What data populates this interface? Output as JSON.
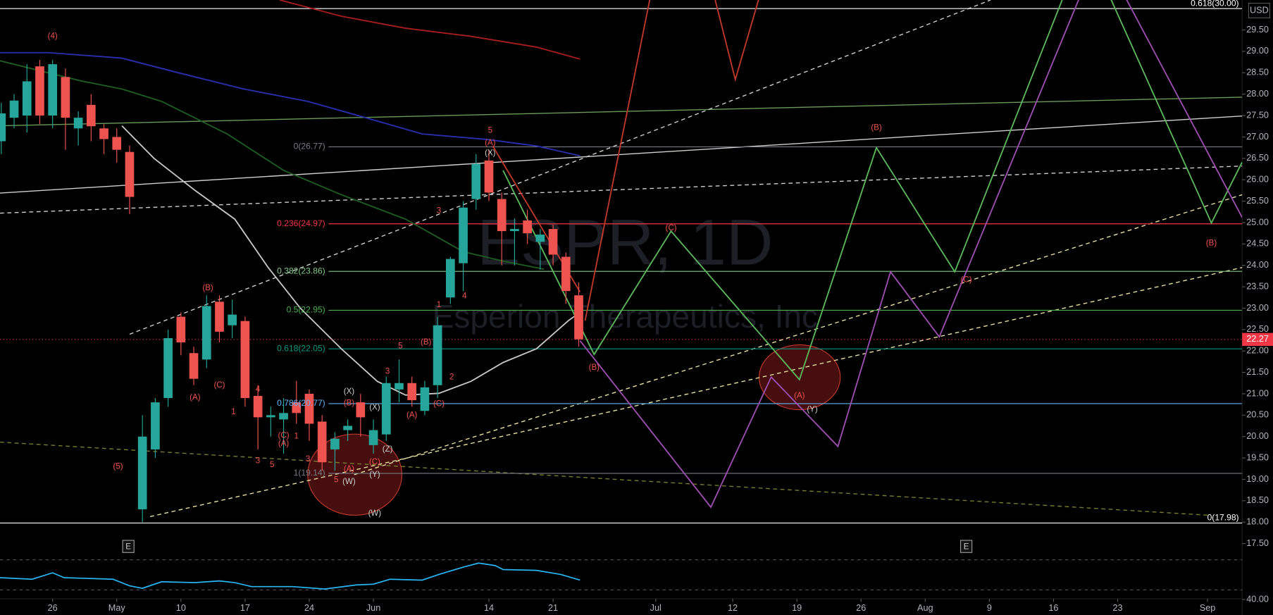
{
  "chart_data": {
    "type": "candlestick",
    "title": "ESPR, 1D",
    "subtitle": "Esperion Therapeutics, Inc",
    "currency": "USD",
    "up_color": "#26a69a",
    "down_color": "#ef5350",
    "xlim": [
      -4.1,
      92.7
    ],
    "ylim": [
      17.12,
      30.2
    ],
    "grid": false,
    "x": [
      -4,
      -3,
      -2,
      -1,
      0,
      1,
      2,
      3,
      4,
      5,
      6,
      7,
      8,
      9,
      10,
      11,
      12,
      13,
      14,
      15,
      16,
      17,
      18,
      19,
      20,
      21,
      22,
      23,
      24,
      25,
      26,
      27,
      28,
      29,
      30,
      31,
      32,
      33,
      34,
      35,
      36,
      37,
      38,
      39,
      40,
      41
    ],
    "open": [
      26.9,
      27.45,
      27.5,
      28.65,
      27.5,
      28.4,
      27.2,
      27.75,
      27.2,
      27.0,
      26.65,
      18.3,
      19.7,
      20.9,
      22.8,
      21.95,
      21.8,
      23.15,
      22.6,
      22.7,
      20.95,
      20.45,
      20.4,
      20.8,
      21.0,
      20.35,
      19.7,
      20.15,
      20.8,
      19.8,
      20.05,
      21.1,
      21.25,
      20.6,
      21.2,
      23.25,
      24.05,
      25.55,
      26.45,
      25.55,
      24.8,
      25.05,
      24.55,
      24.85,
      24.2,
      23.3
    ],
    "high": [
      27.8,
      28.0,
      28.7,
      28.8,
      28.8,
      28.6,
      27.6,
      28.0,
      27.3,
      27.2,
      26.8,
      20.5,
      20.9,
      22.5,
      22.9,
      22.1,
      23.3,
      23.3,
      23.2,
      22.8,
      21.2,
      20.7,
      20.9,
      21.3,
      21.1,
      20.5,
      20.1,
      20.4,
      21.0,
      20.4,
      21.4,
      21.8,
      21.4,
      21.3,
      22.8,
      24.2,
      25.5,
      26.6,
      26.7,
      25.7,
      25.1,
      25.3,
      24.85,
      24.95,
      24.3,
      23.6
    ],
    "low": [
      26.6,
      27.2,
      27.1,
      27.3,
      27.2,
      26.7,
      26.8,
      26.9,
      26.6,
      26.4,
      25.2,
      18.0,
      19.5,
      20.7,
      21.9,
      21.2,
      21.6,
      22.2,
      22.3,
      20.7,
      19.7,
      20.0,
      19.6,
      20.3,
      19.9,
      19.2,
      19.2,
      19.9,
      20.0,
      19.6,
      19.9,
      20.8,
      20.7,
      20.5,
      20.9,
      23.1,
      23.4,
      25.3,
      25.5,
      24.0,
      24.0,
      24.5,
      23.9,
      24.0,
      23.1,
      22.1
    ],
    "close": [
      27.55,
      27.85,
      28.3,
      27.5,
      28.7,
      27.45,
      27.45,
      27.25,
      26.95,
      26.7,
      25.6,
      20.0,
      20.8,
      22.3,
      22.2,
      21.35,
      23.05,
      22.45,
      22.85,
      20.9,
      20.45,
      20.5,
      20.55,
      20.55,
      20.3,
      19.4,
      19.95,
      20.25,
      20.45,
      20.15,
      21.25,
      21.25,
      20.85,
      21.15,
      22.6,
      24.15,
      25.35,
      26.37,
      25.7,
      24.8,
      24.85,
      24.75,
      24.72,
      24.25,
      23.4,
      22.27
    ],
    "last_price": 22.27,
    "last_price_color": "#f23645",
    "xticks": [
      {
        "value": 0,
        "label": "26"
      },
      {
        "value": 5,
        "label": "May"
      },
      {
        "value": 10,
        "label": "10"
      },
      {
        "value": 15,
        "label": "17"
      },
      {
        "value": 20,
        "label": "24"
      },
      {
        "value": 25,
        "label": "Jun"
      },
      {
        "value": 34,
        "label": "14"
      },
      {
        "value": 39,
        "label": "21"
      },
      {
        "value": 47,
        "label": "Jul"
      },
      {
        "value": 53,
        "label": "12"
      },
      {
        "value": 58,
        "label": "19"
      },
      {
        "value": 63,
        "label": "26"
      },
      {
        "value": 68,
        "label": "Aug"
      },
      {
        "value": 73,
        "label": "9"
      },
      {
        "value": 78,
        "label": "16"
      },
      {
        "value": 83,
        "label": "23"
      },
      {
        "value": 90,
        "label": "Sep"
      }
    ],
    "yticks": [
      {
        "value": 17.5,
        "label": "17.50"
      },
      {
        "value": 18,
        "label": "18.00"
      },
      {
        "value": 18.5,
        "label": "18.50"
      },
      {
        "value": 19,
        "label": "19.00"
      },
      {
        "value": 19.5,
        "label": "19.50"
      },
      {
        "value": 20,
        "label": "20.00"
      },
      {
        "value": 20.5,
        "label": "20.50"
      },
      {
        "value": 21,
        "label": "21.00"
      },
      {
        "value": 21.5,
        "label": "21.50"
      },
      {
        "value": 22,
        "label": "22.00"
      },
      {
        "value": 22.5,
        "label": "22.50"
      },
      {
        "value": 23,
        "label": "23.00"
      },
      {
        "value": 23.5,
        "label": "23.50"
      },
      {
        "value": 24,
        "label": "24.00"
      },
      {
        "value": 24.5,
        "label": "24.50"
      },
      {
        "value": 25,
        "label": "25.00"
      },
      {
        "value": 25.5,
        "label": "25.50"
      },
      {
        "value": 26,
        "label": "26.00"
      },
      {
        "value": 26.5,
        "label": "26.50"
      },
      {
        "value": 27,
        "label": "27.00"
      },
      {
        "value": 27.5,
        "label": "27.50"
      },
      {
        "value": 28,
        "label": "28.00"
      },
      {
        "value": 28.5,
        "label": "28.50"
      },
      {
        "value": 29,
        "label": "29.00"
      },
      {
        "value": 29.5,
        "label": "29.50"
      }
    ],
    "moving_averages": [
      {
        "color": "#c8c8c8",
        "x": [
          5.4,
          7.9,
          11.1,
          14.2,
          16.8,
          19.3,
          22.5,
          25.3,
          27.5,
          30.1,
          32.6,
          35.1,
          37.7,
          40.2,
          41.1
        ],
        "values": [
          27.26,
          26.5,
          25.75,
          25.08,
          23.95,
          23.0,
          22.05,
          21.29,
          20.97,
          21.01,
          21.29,
          21.73,
          22.05,
          22.71,
          22.9
        ]
      },
      {
        "color": "#2a2fb0",
        "x": [
          -4.1,
          -0.3,
          5.4,
          9.8,
          14.9,
          19.9,
          24.4,
          28.8,
          33.9,
          37.7,
          41.1
        ],
        "values": [
          28.97,
          28.97,
          28.84,
          28.5,
          28.12,
          27.83,
          27.45,
          27.07,
          26.94,
          26.79,
          26.56
        ]
      },
      {
        "color": "#a81d1d",
        "x": [
          17.7,
          22.5,
          27.5,
          32.6,
          37.7,
          41.1
        ],
        "values": [
          30.2,
          29.82,
          29.54,
          29.35,
          29.1,
          28.82
        ]
      },
      {
        "color": "#1f5e22",
        "x": [
          -4.1,
          2.2,
          5.4,
          8.5,
          13.6,
          18.0,
          22.5,
          27.5,
          32.0,
          35.1,
          38.3
        ],
        "values": [
          28.78,
          28.31,
          28.12,
          27.83,
          27.07,
          26.22,
          25.65,
          25.08,
          24.32,
          24.1,
          23.91
        ]
      }
    ],
    "projections": [
      {
        "color": "#5cb85c",
        "x": [
          35.1,
          42.2,
          48.2,
          58.2,
          64.2,
          70.3,
          79.2,
          81.9,
          90.3,
          92.7
        ],
        "values": [
          26.22,
          21.92,
          24.8,
          21.33,
          26.75,
          23.85,
          30.6,
          30.6,
          24.99,
          26.41
        ]
      },
      {
        "color": "#9c4fb0",
        "x": [
          41.1,
          51.3,
          56.0,
          61.2,
          65.3,
          69.1,
          80.5,
          83.0,
          92.7
        ],
        "values": [
          22.24,
          18.35,
          21.39,
          19.77,
          23.85,
          22.33,
          30.6,
          30.6,
          25.12
        ]
      },
      {
        "color": "#c0392b",
        "x": [
          41.5,
          46.8,
          51.3,
          53.2,
          55.4
        ],
        "values": [
          22.71,
          30.6,
          30.6,
          28.34,
          30.6
        ]
      },
      {
        "color": "#c0392b",
        "x": [
          34.3,
          41.1
        ],
        "values": [
          26.79,
          23.38
        ]
      }
    ],
    "trend_lines": [
      {
        "color": "#d0d0d0",
        "dashed": false,
        "x1": -4.1,
        "y1": 25.69,
        "x2": 92.7,
        "y2": 27.49
      },
      {
        "color": "#6a9a5a",
        "dashed": false,
        "x1": -4.1,
        "y1": 27.26,
        "x2": 92.7,
        "y2": 27.93
      },
      {
        "color": "#d0d0d0",
        "dashed": true,
        "x1": 6.0,
        "y1": 22.39,
        "x2": 73.1,
        "y2": 30.2
      },
      {
        "color": "#d0d0d0",
        "dashed": true,
        "x1": -4.1,
        "y1": 25.22,
        "x2": 92.7,
        "y2": 26.32
      },
      {
        "color": "#e8e0a0",
        "dashed": true,
        "x1": 7.6,
        "y1": 18.13,
        "x2": 92.7,
        "y2": 23.95
      },
      {
        "color": "#e8e0a0",
        "dashed": true,
        "x1": 23.5,
        "y1": 19.11,
        "x2": 92.7,
        "y2": 25.65
      },
      {
        "color": "#7a7a30",
        "dashed": true,
        "x1": -4.1,
        "y1": 19.87,
        "x2": 90.2,
        "y2": 18.16
      }
    ],
    "fib_levels": [
      {
        "label": "0(26.77)",
        "value": 26.77,
        "color": "#787b86",
        "x_start": 21.5
      },
      {
        "label": "0.236(24.97)",
        "value": 24.97,
        "color": "#f23645",
        "x_start": 21.5
      },
      {
        "label": "0.382(23.86)",
        "value": 23.86,
        "color": "#81c784",
        "x_start": 21.5
      },
      {
        "label": "0.5(22.95)",
        "value": 22.95,
        "color": "#4caf50",
        "x_start": 21.5
      },
      {
        "label": "0.618(22.05)",
        "value": 22.05,
        "color": "#089981",
        "x_start": 21.5
      },
      {
        "label": "0.786(20.77)",
        "value": 20.77,
        "color": "#64b5f6",
        "x_start": 21.5
      },
      {
        "label": "1(19.14)",
        "value": 19.14,
        "color": "#787b86",
        "x_start": 21.5
      },
      {
        "label": "0(17.98)",
        "value": 17.98,
        "color": "#ffffff",
        "x_start": -4.1
      },
      {
        "label": "0.618(30.00)",
        "value": 30.0,
        "color": "#ffffff",
        "x_start": -4.1
      }
    ],
    "wave_labels": [
      {
        "text": "(4)",
        "x": 0.0,
        "y": 29.35,
        "color": "#ef5350"
      },
      {
        "text": "(5)",
        "x": 5.1,
        "y": 19.3,
        "color": "#ef5350"
      },
      {
        "text": "(B)",
        "x": 12.1,
        "y": 23.47,
        "color": "#ef5350"
      },
      {
        "text": "(A)",
        "x": 11.1,
        "y": 20.91,
        "color": "#ef5350"
      },
      {
        "text": "(C)",
        "x": 13.0,
        "y": 21.2,
        "color": "#ef5350"
      },
      {
        "text": "1",
        "x": 14.1,
        "y": 20.57,
        "color": "#ef5350"
      },
      {
        "text": "4",
        "x": 16.0,
        "y": 21.1,
        "color": "#ef5350"
      },
      {
        "text": "3",
        "x": 16.0,
        "y": 19.43,
        "color": "#ef5350"
      },
      {
        "text": "5",
        "x": 17.1,
        "y": 19.34,
        "color": "#ef5350"
      },
      {
        "text": "(C)",
        "x": 18.0,
        "y": 20.02,
        "color": "#ef5350"
      },
      {
        "text": "(A)",
        "x": 18.0,
        "y": 19.83,
        "color": "#ef5350"
      },
      {
        "text": "1",
        "x": 19.0,
        "y": 20.0,
        "color": "#ef5350"
      },
      {
        "text": "3",
        "x": 19.9,
        "y": 19.47,
        "color": "#ef5350"
      },
      {
        "text": "5",
        "x": 22.1,
        "y": 18.98,
        "color": "#ef5350"
      },
      {
        "text": "(W)",
        "x": 23.1,
        "y": 18.94,
        "color": "#d0d0d0"
      },
      {
        "text": "(A)",
        "x": 23.1,
        "y": 19.24,
        "color": "#ef5350"
      },
      {
        "text": "(X)",
        "x": 23.1,
        "y": 21.05,
        "color": "#d0d0d0"
      },
      {
        "text": "(B)",
        "x": 23.1,
        "y": 20.78,
        "color": "#ef5350"
      },
      {
        "text": "(C)",
        "x": 25.1,
        "y": 19.4,
        "color": "#ef5350"
      },
      {
        "text": "(Y)",
        "x": 25.1,
        "y": 19.11,
        "color": "#d0d0d0"
      },
      {
        "text": "(Z)",
        "x": 26.1,
        "y": 19.7,
        "color": "#d0d0d0"
      },
      {
        "text": "(X)",
        "x": 25.1,
        "y": 20.68,
        "color": "#d0d0d0"
      },
      {
        "text": "(W)",
        "x": 25.1,
        "y": 18.2,
        "color": "#d0d0d0"
      },
      {
        "text": "3",
        "x": 26.1,
        "y": 21.52,
        "color": "#ef5350"
      },
      {
        "text": "5",
        "x": 27.1,
        "y": 22.11,
        "color": "#ef5350"
      },
      {
        "text": "(A)",
        "x": 28.0,
        "y": 20.5,
        "color": "#ef5350"
      },
      {
        "text": "(B)",
        "x": 29.1,
        "y": 22.2,
        "color": "#ef5350"
      },
      {
        "text": "(C)",
        "x": 30.1,
        "y": 20.76,
        "color": "#ef5350"
      },
      {
        "text": "2",
        "x": 31.1,
        "y": 21.39,
        "color": "#ef5350"
      },
      {
        "text": "1",
        "x": 30.1,
        "y": 23.07,
        "color": "#ef5350"
      },
      {
        "text": "3",
        "x": 30.1,
        "y": 25.27,
        "color": "#ef5350"
      },
      {
        "text": "4",
        "x": 32.1,
        "y": 23.28,
        "color": "#ef5350"
      },
      {
        "text": "5",
        "x": 34.1,
        "y": 27.15,
        "color": "#ef5350"
      },
      {
        "text": "(A)",
        "x": 34.1,
        "y": 26.86,
        "color": "#ef5350"
      },
      {
        "text": "(X)",
        "x": 34.1,
        "y": 26.62,
        "color": "#d0d0d0"
      },
      {
        "text": "(B)",
        "x": 42.2,
        "y": 21.61,
        "color": "#ef5350"
      },
      {
        "text": "(C)",
        "x": 48.2,
        "y": 24.87,
        "color": "#ef5350"
      },
      {
        "text": "(B)",
        "x": 64.2,
        "y": 27.21,
        "color": "#ef5350"
      },
      {
        "text": "(C)",
        "x": 71.2,
        "y": 23.66,
        "color": "#ef5350"
      },
      {
        "text": "(A)",
        "x": 58.2,
        "y": 20.95,
        "color": "#ef5350"
      },
      {
        "text": "(Y)",
        "x": 59.2,
        "y": 20.63,
        "color": "#d0d0d0"
      },
      {
        "text": "(B)",
        "x": 90.3,
        "y": 24.51,
        "color": "#ef5350"
      }
    ],
    "earnings": [
      {
        "x": 5.9,
        "label": "E"
      },
      {
        "x": 71.2,
        "label": "E"
      }
    ],
    "indicator": {
      "color": "#29b6f6",
      "ylim": [
        28,
        72
      ],
      "yticks": [
        {
          "value": 40,
          "label": "40.00"
        }
      ],
      "x": [
        -4.1,
        -1.6,
        0,
        0.9,
        4.7,
        6.0,
        7.0,
        8.5,
        11.1,
        13.0,
        14.2,
        15.5,
        18.7,
        21.2,
        23.7,
        25.0,
        26.3,
        28.8,
        30.1,
        32.0,
        33.2,
        34.5,
        35.1,
        37.7,
        39.6,
        41.1
      ],
      "values": [
        56.9,
        55.7,
        60.7,
        56.9,
        55.7,
        50.6,
        48.7,
        53.8,
        53.1,
        54.4,
        53.1,
        50.0,
        50.0,
        48.1,
        51.3,
        51.9,
        55.7,
        55.0,
        59.4,
        65.1,
        68.2,
        66.3,
        63.2,
        62.6,
        59.4,
        55.0
      ]
    }
  }
}
